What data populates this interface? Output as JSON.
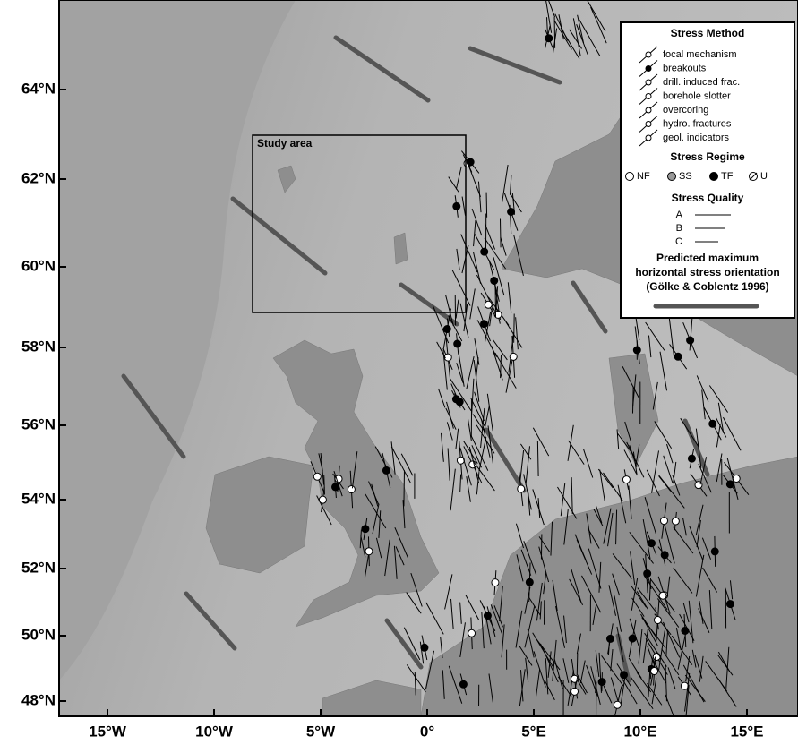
{
  "map": {
    "lat_labels": [
      "64°N",
      "62°N",
      "60°N",
      "58°N",
      "56°N",
      "54°N",
      "52°N",
      "50°N",
      "48°N"
    ],
    "lon_labels": [
      "15°W",
      "10°W",
      "5°W",
      "0°",
      "5°E",
      "10°E",
      "15°E"
    ],
    "study_area_label": "Study area"
  },
  "legend": {
    "method_title": "Stress Method",
    "methods": [
      "focal mechanism",
      "breakouts",
      "drill. induced frac.",
      "borehole slotter",
      "overcoring",
      "hydro. fractures",
      "geol. indicators"
    ],
    "regime_title": "Stress Regime",
    "regimes": [
      "NF",
      "SS",
      "TF",
      "U"
    ],
    "quality_title": "Stress Quality",
    "qualities": [
      "A",
      "B",
      "C"
    ],
    "predicted_title": [
      "Predicted maximum",
      "horizontal stress orientation",
      "(Gölke & Coblentz 1996)"
    ]
  }
}
